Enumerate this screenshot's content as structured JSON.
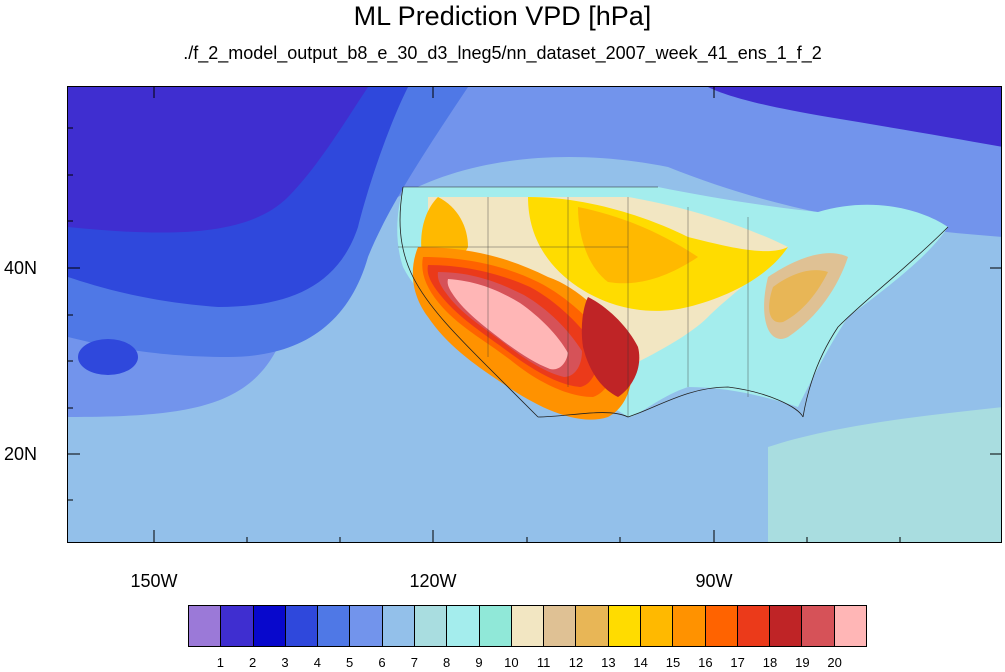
{
  "title": "ML Prediction VPD [hPa]",
  "subtitle": "./f_2_model_output_b8_e_30_d3_lneg5/nn_dataset_2007_week_41_ens_1_f_2",
  "map": {
    "lat_labels": [
      "40N",
      "20N"
    ],
    "lon_labels": [
      "150W",
      "120W",
      "90W"
    ],
    "lat_values": [
      40,
      20
    ],
    "lon_values": [
      -150,
      -120,
      -90
    ]
  },
  "colorbar": {
    "colors": [
      "#9b79d8",
      "#3f2ed0",
      "#0808cc",
      "#2f48dc",
      "#4f78e6",
      "#7294ec",
      "#93c0ea",
      "#a9dde0",
      "#a4eded",
      "#90e8d8",
      "#f2e6c2",
      "#dfc194",
      "#e8b656",
      "#ffdc00",
      "#ffb900",
      "#ff9200",
      "#ff6300",
      "#eb3a1a",
      "#bf2426",
      "#d65258",
      "#ffb6b6"
    ],
    "labels": [
      "1",
      "2",
      "3",
      "4",
      "5",
      "6",
      "7",
      "8",
      "9",
      "10",
      "11",
      "12",
      "13",
      "14",
      "15",
      "16",
      "17",
      "18",
      "19",
      "20"
    ]
  }
}
